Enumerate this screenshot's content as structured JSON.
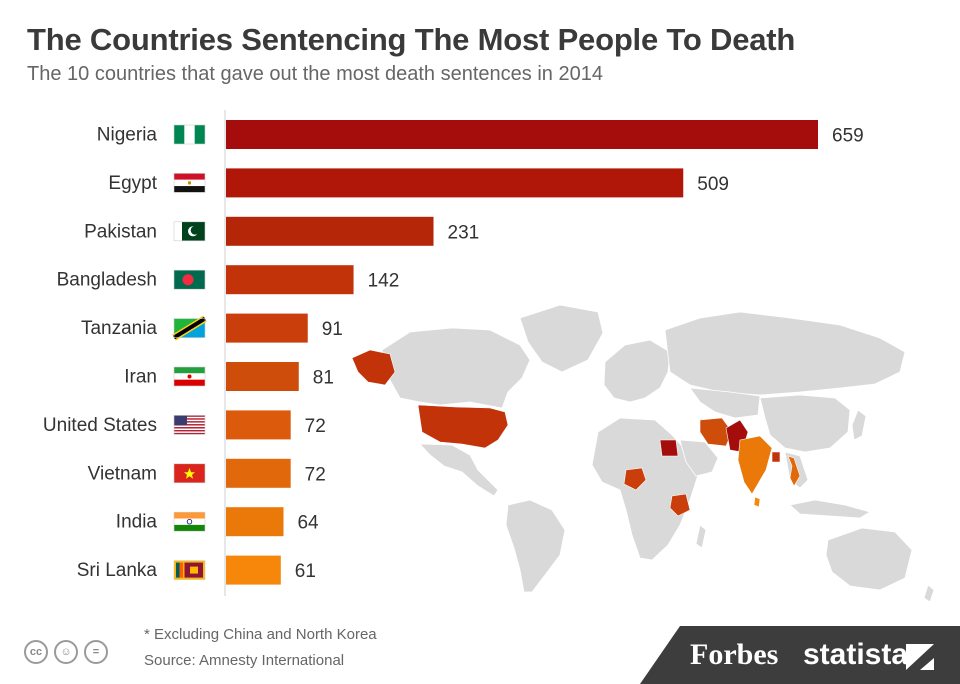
{
  "header": {
    "title": "The Countries Sentencing The Most People To Death",
    "subtitle": "The 10 countries that gave out the most death sentences in 2014"
  },
  "chart_data": {
    "type": "bar",
    "orientation": "horizontal",
    "title": "The Countries Sentencing The Most People To Death",
    "subtitle": "The 10 countries that gave out the most death sentences in 2014",
    "categories": [
      "Nigeria",
      "Egypt",
      "Pakistan",
      "Bangladesh",
      "Tanzania",
      "Iran",
      "United States",
      "Vietnam",
      "India",
      "Sri Lanka"
    ],
    "values": [
      659,
      509,
      231,
      142,
      91,
      81,
      72,
      72,
      64,
      61
    ],
    "xlim": [
      0,
      659
    ],
    "grid": false,
    "legend": "none",
    "bar_colors": [
      "#a50d0d",
      "#b01709",
      "#b52508",
      "#c2330a",
      "#c93e0a",
      "#cf4d0a",
      "#db5a0c",
      "#e2680c",
      "#ea790a",
      "#f7870b"
    ],
    "flags": [
      "nigeria-flag",
      "egypt-flag",
      "pakistan-flag",
      "bangladesh-flag",
      "tanzania-flag",
      "iran-flag",
      "usa-flag",
      "vietnam-flag",
      "india-flag",
      "sri-lanka-flag"
    ],
    "map_highlight": [
      {
        "country": "Nigeria",
        "color": "#c93e0a"
      },
      {
        "country": "Egypt",
        "color": "#a50d0d"
      },
      {
        "country": "Pakistan",
        "color": "#a50d0d"
      },
      {
        "country": "Bangladesh",
        "color": "#c2330a"
      },
      {
        "country": "Tanzania",
        "color": "#c93e0a"
      },
      {
        "country": "Iran",
        "color": "#cf4d0a"
      },
      {
        "country": "United States",
        "color": "#c2330a"
      },
      {
        "country": "Vietnam",
        "color": "#e2680c"
      },
      {
        "country": "India",
        "color": "#ea790a"
      },
      {
        "country": "Sri Lanka",
        "color": "#f7870b"
      }
    ],
    "map_base_color": "#d9d9d9"
  },
  "footer": {
    "note": "* Excluding China and North Korea",
    "source": "Source: Amnesty International",
    "license_icons": [
      "cc-icon",
      "by-icon",
      "nd-icon"
    ],
    "brand_forbes": "Forbes",
    "brand_statista": "statista"
  }
}
